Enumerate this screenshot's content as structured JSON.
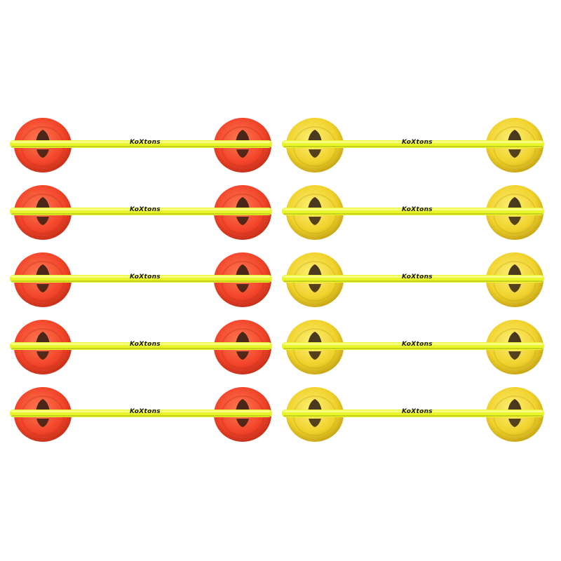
{
  "product": {
    "brand_text": "KoXtons",
    "pole_color": "#e8f52a",
    "sets": [
      {
        "cone_color": "red"
      },
      {
        "cone_color": "red"
      },
      {
        "cone_color": "red"
      },
      {
        "cone_color": "red"
      },
      {
        "cone_color": "red"
      },
      {
        "cone_color": "yellow"
      },
      {
        "cone_color": "yellow"
      },
      {
        "cone_color": "yellow"
      },
      {
        "cone_color": "yellow"
      },
      {
        "cone_color": "yellow"
      }
    ]
  },
  "colors": {
    "red_cone": "#f2452a",
    "red_cone_light": "#ff7a55",
    "red_cone_dark": "#c8301a",
    "yellow_cone": "#f0d22c",
    "yellow_cone_light": "#fff07a",
    "yellow_cone_dark": "#c9a817",
    "background": "#ffffff"
  }
}
